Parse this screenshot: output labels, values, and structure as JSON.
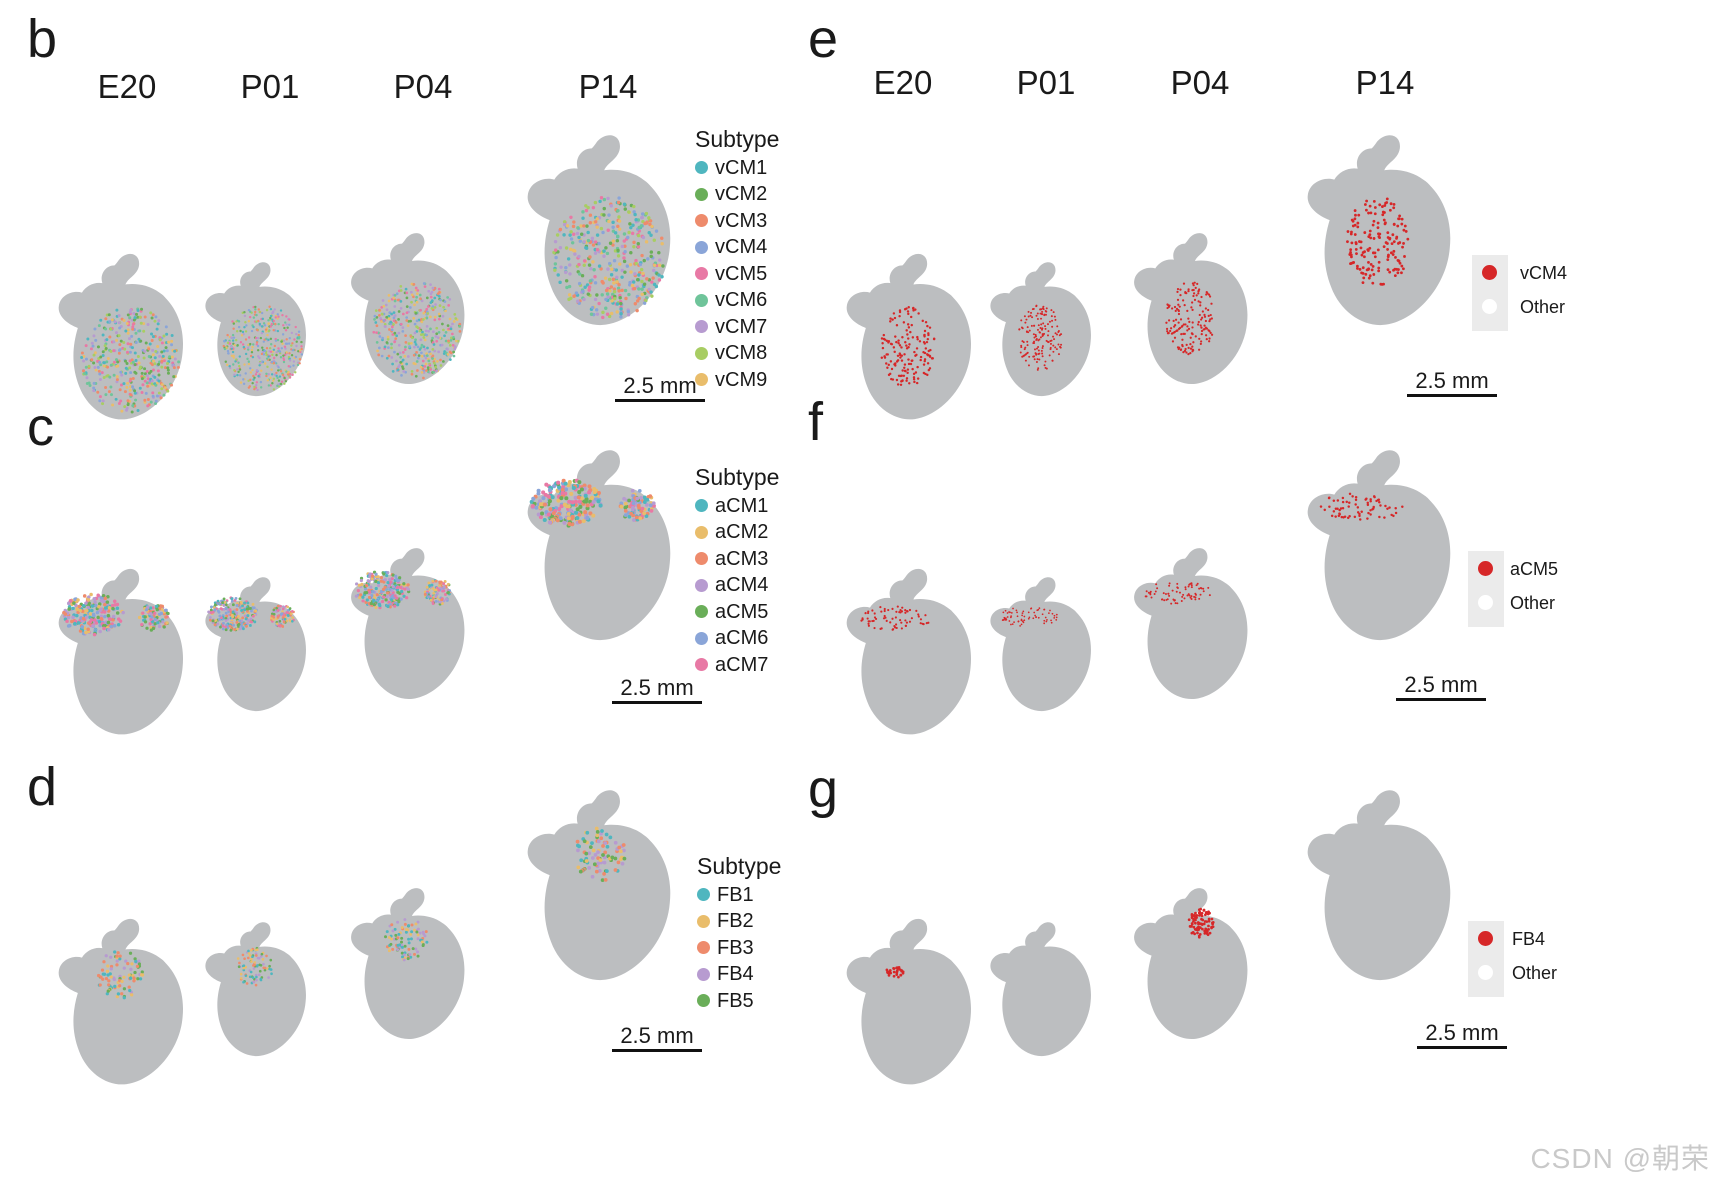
{
  "stages": [
    "E20",
    "P01",
    "P04",
    "P14"
  ],
  "scale_label": "2.5 mm",
  "watermark": "CSDN @朝荣",
  "colors": {
    "tissue": "#bcbec0",
    "highlight": "#d62728",
    "other": "#ffffff"
  },
  "panels": [
    {
      "letter": "b",
      "legend_title": "Subtype",
      "legend": [
        {
          "label": "vCM1",
          "color": "#4fb6bf"
        },
        {
          "label": "vCM2",
          "color": "#6aae59"
        },
        {
          "label": "vCM3",
          "color": "#ee8b6c"
        },
        {
          "label": "vCM4",
          "color": "#8aa5d8"
        },
        {
          "label": "vCM5",
          "color": "#e879a5"
        },
        {
          "label": "vCM6",
          "color": "#6fc49a"
        },
        {
          "label": "vCM7",
          "color": "#b79bd0"
        },
        {
          "label": "vCM8",
          "color": "#a8cd63"
        },
        {
          "label": "vCM9",
          "color": "#e9bd6b"
        }
      ]
    },
    {
      "letter": "c",
      "legend_title": "Subtype",
      "legend": [
        {
          "label": "aCM1",
          "color": "#4fb6bf"
        },
        {
          "label": "aCM2",
          "color": "#e9bd6b"
        },
        {
          "label": "aCM3",
          "color": "#ee8b6c"
        },
        {
          "label": "aCM4",
          "color": "#b79bd0"
        },
        {
          "label": "aCM5",
          "color": "#6aae59"
        },
        {
          "label": "aCM6",
          "color": "#8aa5d8"
        },
        {
          "label": "aCM7",
          "color": "#e879a5"
        }
      ]
    },
    {
      "letter": "d",
      "legend_title": "Subtype",
      "legend": [
        {
          "label": "FB1",
          "color": "#4fb6bf"
        },
        {
          "label": "FB2",
          "color": "#e9bd6b"
        },
        {
          "label": "FB3",
          "color": "#ee8b6c"
        },
        {
          "label": "FB4",
          "color": "#b79bd0"
        },
        {
          "label": "FB5",
          "color": "#6aae59"
        }
      ]
    },
    {
      "letter": "e",
      "highlight_label": "vCM4",
      "other_label": "Other"
    },
    {
      "letter": "f",
      "highlight_label": "aCM5",
      "other_label": "Other"
    },
    {
      "letter": "g",
      "highlight_label": "FB4",
      "other_label": "Other"
    }
  ]
}
